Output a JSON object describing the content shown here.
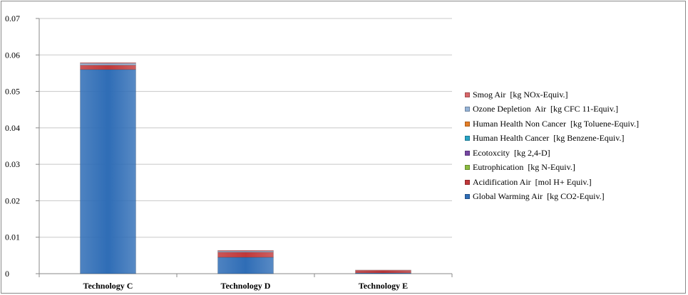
{
  "chart_data": {
    "type": "bar",
    "stacked": true,
    "categories": [
      "Technology C",
      "Technology D",
      "Technology E"
    ],
    "ylim": [
      0,
      0.07
    ],
    "yticks": [
      "0",
      "0.01",
      "0.02",
      "0.03",
      "0.04",
      "0.05",
      "0.06",
      "0.07"
    ],
    "grid": true,
    "legend_position": "right",
    "series": [
      {
        "name": "Global Warming Air  [kg CO2-Equiv.]",
        "color": "#2f6db6",
        "values": [
          0.056,
          0.0045,
          0.0002
        ]
      },
      {
        "name": "Acidification Air  [mol H+ Equiv.]",
        "color": "#c0383a",
        "values": [
          0.0012,
          0.0014,
          0.0006
        ]
      },
      {
        "name": "Eutrophication  [kg N-Equiv.]",
        "color": "#8bbb3f",
        "values": [
          0.0,
          0.0,
          0.0
        ]
      },
      {
        "name": "Ecotoxcity  [kg 2,4-D]",
        "color": "#7647a3",
        "values": [
          0.0,
          0.0,
          0.0
        ]
      },
      {
        "name": "Human Health Cancer  [kg Benzene-Equiv.]",
        "color": "#27a3c4",
        "values": [
          0.0,
          0.0,
          0.0
        ]
      },
      {
        "name": "Human Health Non Cancer  [kg Toluene-Equiv.]",
        "color": "#e57e26",
        "values": [
          0.0,
          0.0,
          0.0
        ]
      },
      {
        "name": "Ozone Depletion  Air  [kg CFC 11-Equiv.]",
        "color": "#95b3d7",
        "values": [
          0.0005,
          0.0003,
          0.0
        ]
      },
      {
        "name": "Smog Air  [kg NOx-Equiv.]",
        "color": "#d9676a",
        "values": [
          0.0002,
          0.0002,
          0.0002
        ]
      }
    ]
  }
}
